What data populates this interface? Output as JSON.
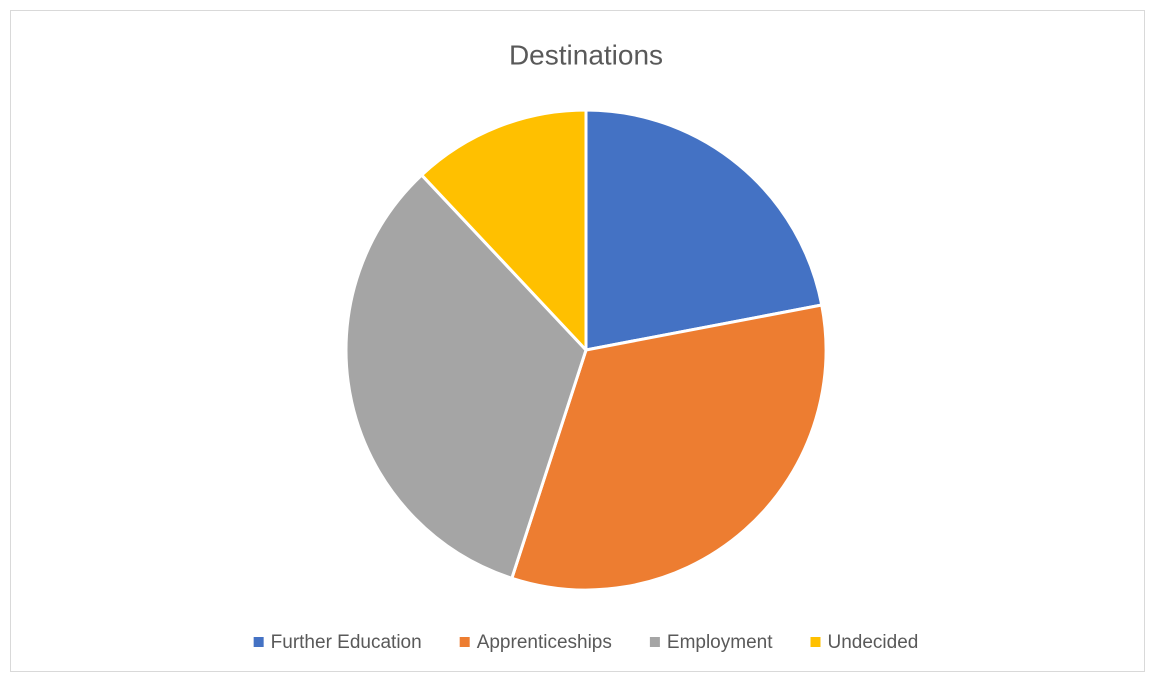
{
  "chart_data": {
    "type": "pie",
    "title": "Destinations",
    "categories": [
      "Further Education",
      "Apprenticeships",
      "Employment",
      "Undecided"
    ],
    "values": [
      22,
      33,
      33,
      12
    ],
    "colors": [
      "#4472c4",
      "#ed7d31",
      "#a5a5a5",
      "#ffc000"
    ],
    "legend": "bottom"
  }
}
